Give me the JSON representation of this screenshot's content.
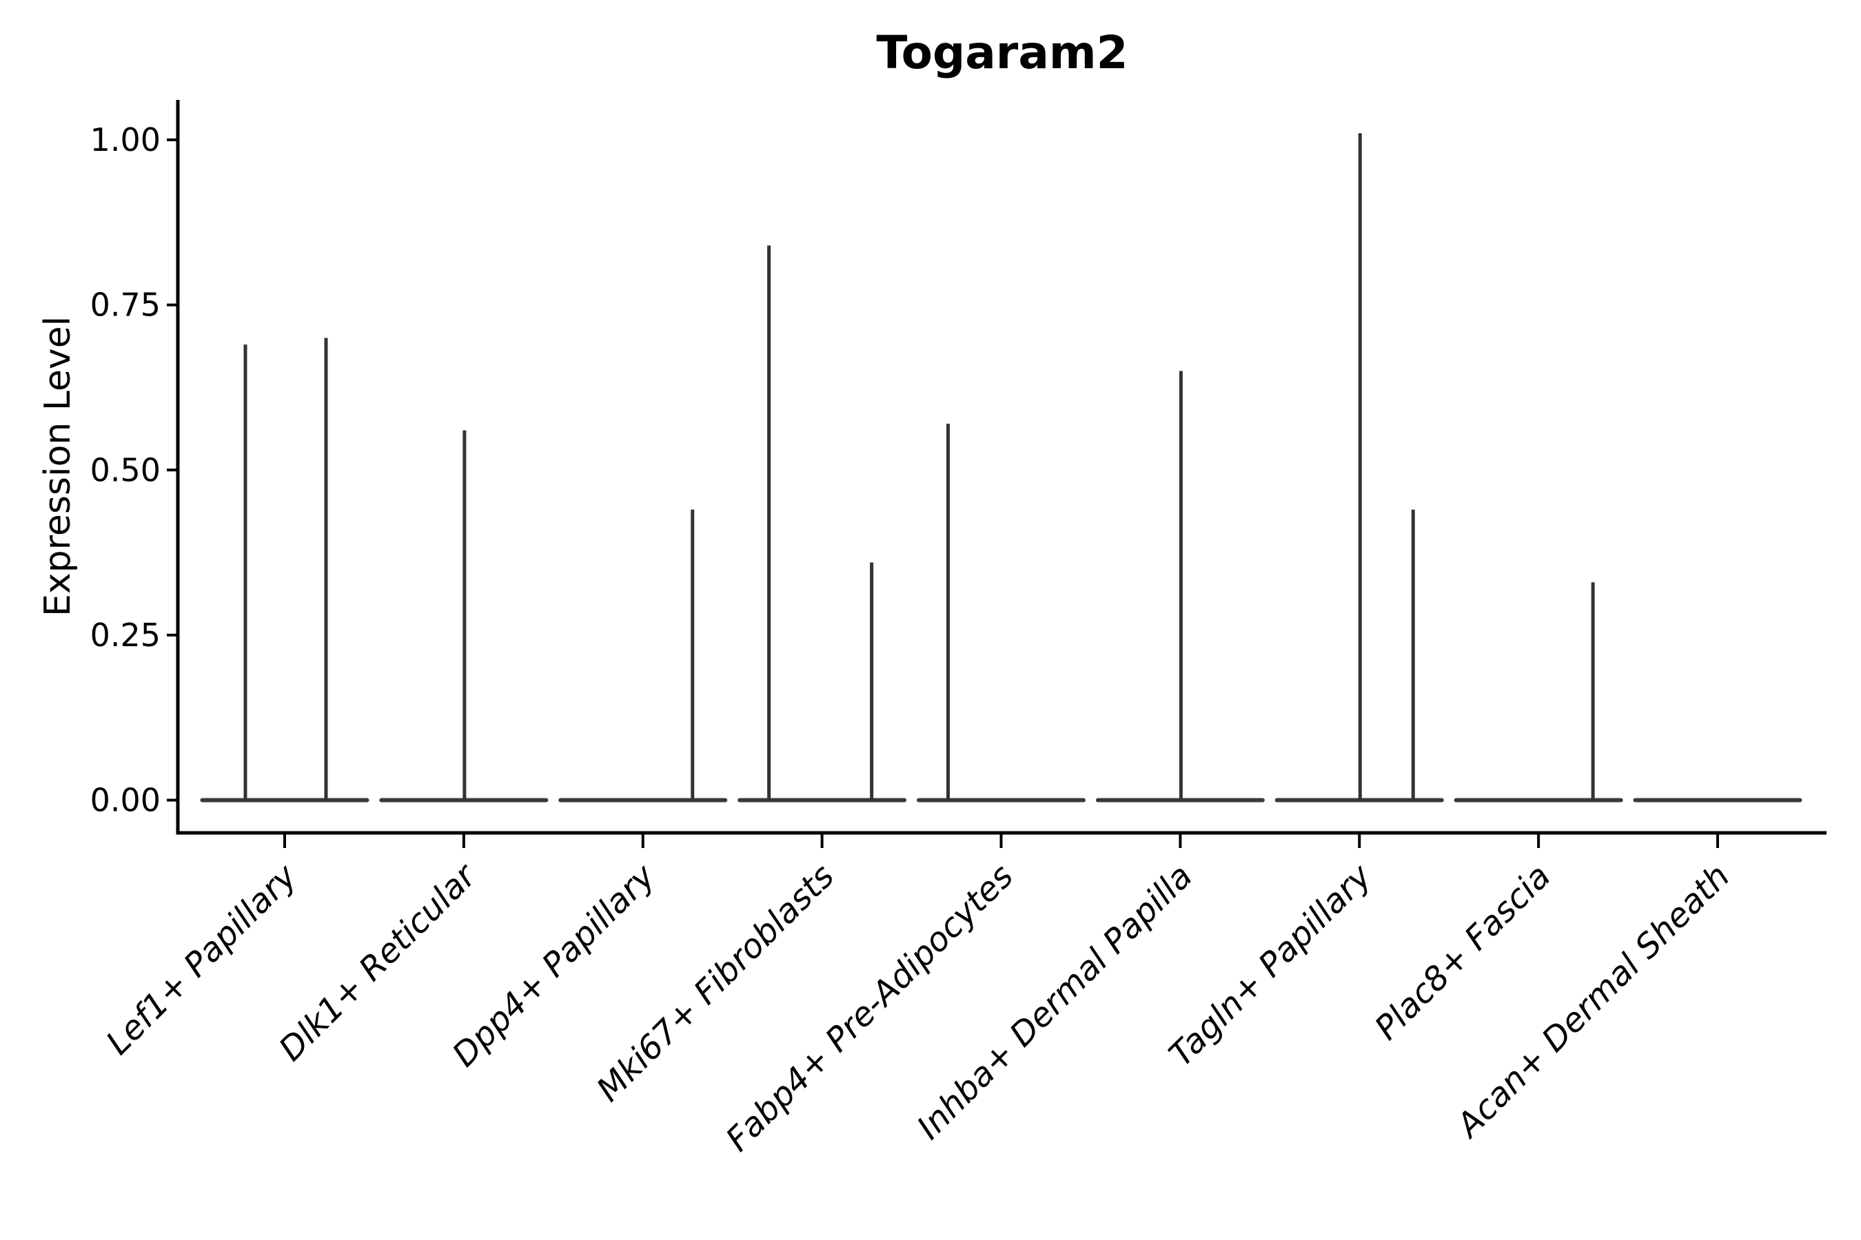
{
  "figure": {
    "background": "#ffffff"
  },
  "chart_data": {
    "type": "violin",
    "title": "Togaram2",
    "ylabel": "Expression Level",
    "xlabel": "",
    "grid": false,
    "legend": false,
    "ylim": [
      -0.05,
      1.06
    ],
    "ytick_labels": [
      "1.00",
      "0.75",
      "0.50",
      "0.25",
      "0.00"
    ],
    "ytick_values": [
      1.0,
      0.75,
      0.5,
      0.25,
      0.0
    ],
    "categories": [
      "Lef1+ Papillary",
      "Dlk1+ Reticular",
      "Dpp4+ Papillary",
      "Mki67+ Fibroblasts",
      "Fabp4+ Pre-Adipocytes",
      "Inhba+ Dermal Papilla",
      "Tagln+ Papillary",
      "Plac8+ Fascia",
      "Acan+ Dermal Sheath"
    ],
    "series": [
      {
        "category": "Lef1+ Papillary",
        "baseline_value": 0.0,
        "spikes": [
          {
            "value": 0.69,
            "offset": -57
          },
          {
            "value": 0.7,
            "offset": 60
          }
        ]
      },
      {
        "category": "Dlk1+ Reticular",
        "baseline_value": 0.0,
        "spikes": [
          {
            "value": 0.56,
            "offset": 1
          }
        ]
      },
      {
        "category": "Dpp4+ Papillary",
        "baseline_value": 0.0,
        "spikes": [
          {
            "value": 0.44,
            "offset": 72
          }
        ]
      },
      {
        "category": "Mki67+ Fibroblasts",
        "baseline_value": 0.0,
        "spikes": [
          {
            "value": 0.84,
            "offset": -77
          },
          {
            "value": 0.36,
            "offset": 72
          }
        ]
      },
      {
        "category": "Fabp4+ Pre-Adipocytes",
        "baseline_value": 0.0,
        "spikes": [
          {
            "value": 0.57,
            "offset": -77
          }
        ]
      },
      {
        "category": "Inhba+ Dermal Papilla",
        "baseline_value": 0.0,
        "spikes": [
          {
            "value": 0.65,
            "offset": 1
          }
        ]
      },
      {
        "category": "Tagln+ Papillary",
        "baseline_value": 0.0,
        "spikes": [
          {
            "value": 1.01,
            "offset": 1
          },
          {
            "value": 0.44,
            "offset": 78
          }
        ]
      },
      {
        "category": "Plac8+ Fascia",
        "baseline_value": 0.0,
        "spikes": [
          {
            "value": 0.33,
            "offset": 79
          }
        ]
      },
      {
        "category": "Acan+ Dermal Sheath",
        "baseline_value": 0.0,
        "spikes": []
      }
    ],
    "colors": {
      "violin": "#3a3a3a",
      "spike": "#333333",
      "axis": "#000000",
      "text": "#000000",
      "background": "#ffffff"
    }
  }
}
